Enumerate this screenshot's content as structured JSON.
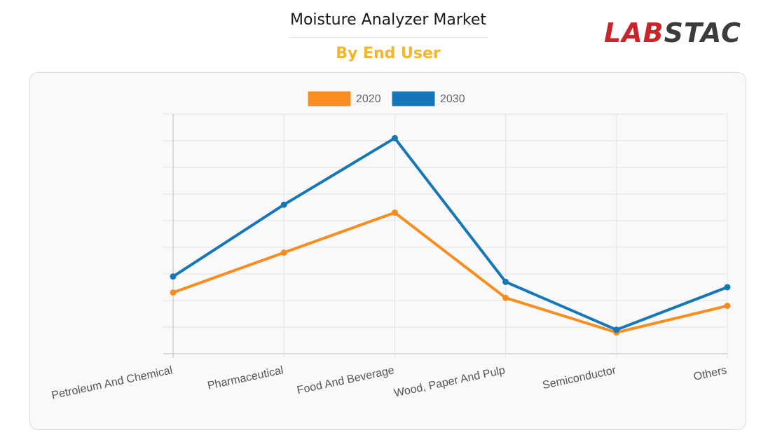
{
  "header": {
    "title": "Moisture Analyzer Market",
    "subtitle": "By End User",
    "logo": {
      "part1": "LAB",
      "part2": "STAC"
    }
  },
  "colors": {
    "series_2020": "#f98d1f",
    "series_2030": "#1577b8",
    "subtitle": "#f3b62b",
    "logo_red": "#c8262b"
  },
  "chart_data": {
    "type": "line",
    "title": "",
    "xlabel": "",
    "ylabel": "",
    "categories": [
      "Petroleum And Chemical",
      "Pharmaceutical",
      "Food And Beverage",
      "Wood, Paper And Pulp",
      "Semiconductor",
      "Others"
    ],
    "series": [
      {
        "name": "2020",
        "values": [
          2.3,
          3.8,
          5.3,
          2.1,
          0.8,
          1.8
        ]
      },
      {
        "name": "2030",
        "values": [
          2.9,
          5.6,
          8.1,
          2.7,
          0.9,
          2.5
        ]
      }
    ],
    "ylim": [
      0,
      9
    ],
    "y_tick_labels_shown": false,
    "grid": true,
    "legend": "top-center"
  }
}
